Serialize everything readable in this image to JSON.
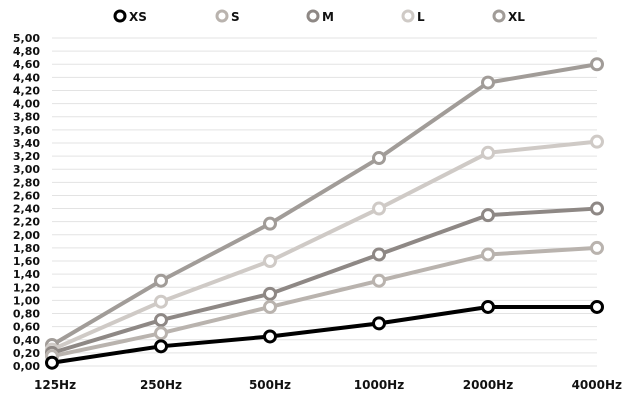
{
  "chart_data": {
    "type": "line",
    "categories": [
      "125Hz",
      "250Hz",
      "500Hz",
      "1000Hz",
      "2000Hz",
      "4000Hz"
    ],
    "y_tick_labels": [
      "0,00",
      "0,20",
      "0,40",
      "0,60",
      "0,80",
      "1,00",
      "1,20",
      "1,40",
      "1,60",
      "1,80",
      "2,00",
      "2,20",
      "2,40",
      "2,60",
      "2,80",
      "3,00",
      "3,20",
      "3,40",
      "3,60",
      "3,80",
      "4,00",
      "4,20",
      "4,40",
      "4,60",
      "4,80",
      "5,00"
    ],
    "ylim": [
      0,
      5
    ],
    "grid": true,
    "legend_position": "top",
    "series": [
      {
        "name": "XS",
        "color": "#000000",
        "values": [
          0.05,
          0.3,
          0.45,
          0.65,
          0.9,
          0.9
        ]
      },
      {
        "name": "S",
        "color": "#b9b3ae",
        "values": [
          0.15,
          0.5,
          0.9,
          1.3,
          1.7,
          1.8
        ]
      },
      {
        "name": "M",
        "color": "#8e8885",
        "values": [
          0.2,
          0.7,
          1.1,
          1.7,
          2.3,
          2.4
        ]
      },
      {
        "name": "L",
        "color": "#cfcac6",
        "values": [
          0.25,
          0.98,
          1.6,
          2.4,
          3.25,
          3.42
        ]
      },
      {
        "name": "XL",
        "color": "#a19c98",
        "values": [
          0.32,
          1.3,
          2.17,
          3.17,
          4.32,
          4.6
        ]
      }
    ]
  }
}
